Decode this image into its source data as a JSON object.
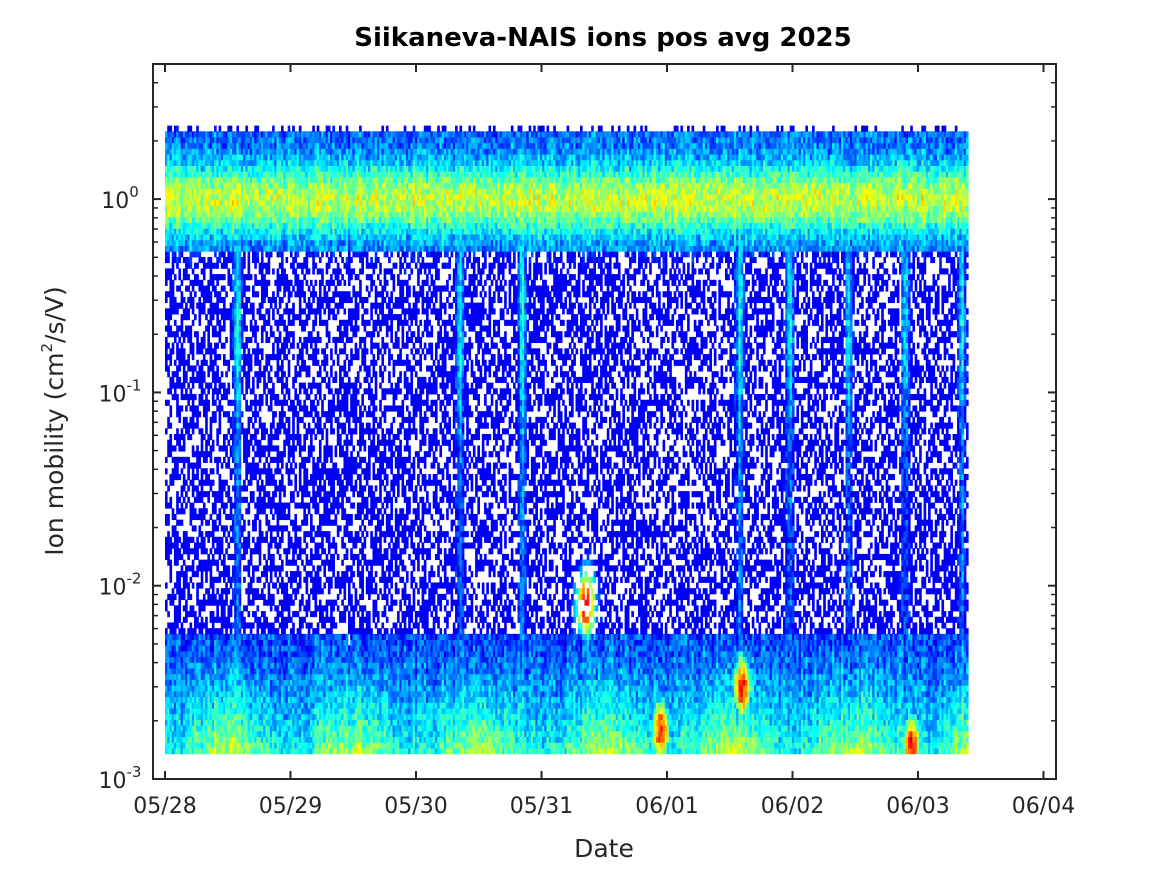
{
  "chart_data": {
    "type": "heatmap",
    "title": "Siikaneva-NAIS ions pos avg 2025",
    "xlabel": "Date",
    "ylabel": {
      "text_before": "Ion mobility (cm",
      "superscript": "2",
      "text_after": "/s/V)"
    },
    "y_scale": "log",
    "ylim": [
      0.001,
      5
    ],
    "y_ticks": [
      {
        "base": "10",
        "exponent": "-3",
        "value": 0.001
      },
      {
        "base": "10",
        "exponent": "-2",
        "value": 0.01
      },
      {
        "base": "10",
        "exponent": "-1",
        "value": 0.1
      },
      {
        "base": "10",
        "exponent": "0",
        "value": 1
      }
    ],
    "x_ticks": [
      "05/28",
      "05/29",
      "05/30",
      "05/31",
      "06/01",
      "06/02",
      "06/03",
      "06/04"
    ],
    "xlim_days": [
      0,
      7
    ],
    "data_extent_days": [
      0,
      6.4
    ],
    "data_y_range": [
      0.00135,
      2.4
    ],
    "colormap": "jet",
    "features": {
      "main_band_center_mobility": 1.0,
      "main_band_low_edge_mobility": 0.6,
      "main_band_high_edge_mobility": 2.3,
      "low_mobility_band_top": 0.0055,
      "band_dips_days": [
        0.58,
        2.35,
        2.85,
        4.58,
        4.98,
        5.45,
        5.9,
        6.35
      ],
      "high_intensity_spots": [
        {
          "day": 4.6,
          "mobility": 0.003
        },
        {
          "day": 3.95,
          "mobility": 0.0018
        },
        {
          "day": 5.95,
          "mobility": 0.0015
        },
        {
          "day": 3.35,
          "mobility": 0.008
        }
      ]
    },
    "grid": false,
    "legend": "none"
  }
}
